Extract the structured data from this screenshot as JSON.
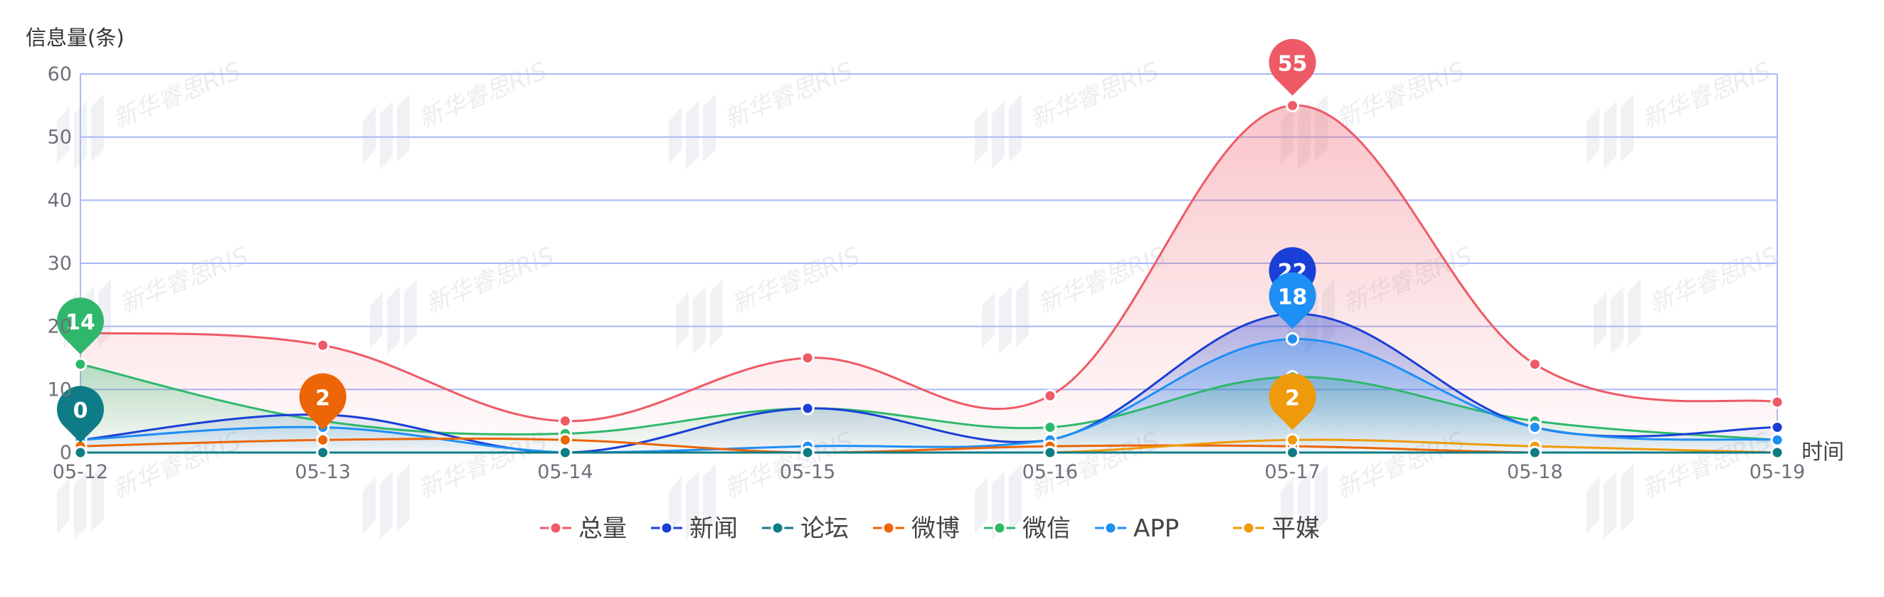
{
  "chart_data": {
    "type": "line",
    "ylabel": "信息量(条)",
    "xlabel": "时间",
    "categories": [
      "05-12",
      "05-13",
      "05-14",
      "05-15",
      "05-16",
      "05-17",
      "05-18",
      "05-19"
    ],
    "yticks": [
      "0",
      "10",
      "20",
      "30",
      "40",
      "50",
      "60"
    ],
    "ylim": [
      0,
      60
    ],
    "grid": true,
    "smooth": true,
    "legend_position": "bottom-center",
    "series": [
      {
        "name": "总量",
        "color": "#ee5a66",
        "values": [
          19,
          17,
          5,
          15,
          9,
          55,
          14,
          8
        ],
        "area": true
      },
      {
        "name": "新闻",
        "color": "#1a3fd6",
        "values": [
          2,
          6,
          0,
          7,
          2,
          22,
          4,
          4
        ],
        "area": true
      },
      {
        "name": "论坛",
        "color": "#0e7c86",
        "values": [
          0,
          0,
          0,
          0,
          0,
          0,
          0,
          0
        ],
        "area": false
      },
      {
        "name": "微博",
        "color": "#ec6506",
        "values": [
          1,
          2,
          2,
          0,
          1,
          1,
          0,
          0
        ],
        "area": false
      },
      {
        "name": "微信",
        "color": "#2fb86c",
        "values": [
          14,
          5,
          3,
          7,
          4,
          12,
          5,
          2
        ],
        "area": true
      },
      {
        "name": "APP",
        "color": "#1e8ff5",
        "values": [
          2,
          4,
          0,
          1,
          2,
          18,
          4,
          2
        ],
        "area": true
      },
      {
        "name": "平媒",
        "color": "#ef9a0a",
        "values": [
          0,
          0,
          0,
          0,
          0,
          2,
          1,
          0
        ],
        "area": false
      }
    ],
    "markers": [
      {
        "series": 0,
        "index": 5,
        "label": "55"
      },
      {
        "series": 1,
        "index": 5,
        "label": "22"
      },
      {
        "series": 5,
        "index": 5,
        "label": "18"
      },
      {
        "series": 4,
        "index": 0,
        "label": "14"
      },
      {
        "series": 2,
        "index": 0,
        "label": "0"
      },
      {
        "series": 3,
        "index": 1,
        "label": "2"
      },
      {
        "series": 6,
        "index": 5,
        "label": "2"
      }
    ]
  },
  "watermark": "新华睿思RIS"
}
